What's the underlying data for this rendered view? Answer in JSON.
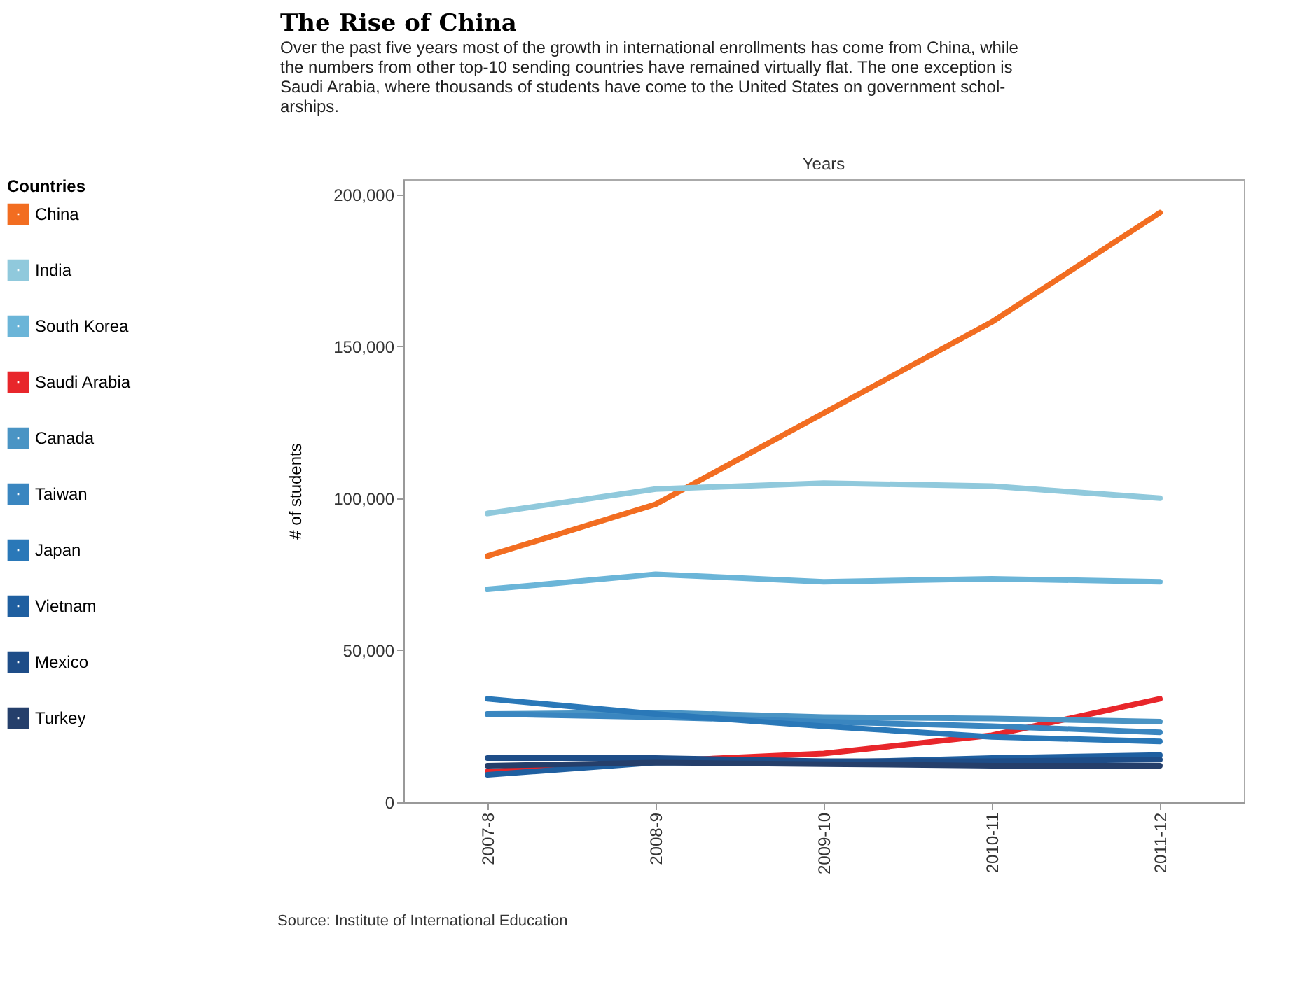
{
  "chart_data": {
    "type": "line",
    "title": "The Rise of China",
    "subtitle": "Over the past five years most of the growth in international enrollments has come from China, while the numbers from other top-10 sending countries have remained virtually flat. The one exception is Saudi Arabia, where thousands of students have come to the United States on government schol-arships.",
    "xlabel": "Years",
    "ylabel": "# of students",
    "legend_title": "Countries",
    "legend": "left",
    "grid": false,
    "marker": "none",
    "line_style": "solid",
    "categories": [
      "2007-8",
      "2008-9",
      "2009-10",
      "2010-11",
      "2011-12"
    ],
    "ylim": [
      0,
      205000
    ],
    "yticks": [
      0,
      {
        "value": 50000,
        "label": "50,000"
      },
      {
        "value": 100000,
        "label": "100,000"
      },
      {
        "value": 150000,
        "label": "150,000"
      },
      {
        "value": 200000,
        "label": "200,000"
      }
    ],
    "series": [
      {
        "name": "China",
        "color": "#f26d21",
        "values": [
          81000,
          98000,
          128000,
          158000,
          194000
        ]
      },
      {
        "name": "India",
        "color": "#90c9dc",
        "values": [
          95000,
          103000,
          105000,
          104000,
          100000
        ]
      },
      {
        "name": "South Korea",
        "color": "#6bb5d8",
        "values": [
          70000,
          75000,
          72500,
          73500,
          72500
        ]
      },
      {
        "name": "Saudi Arabia",
        "color": "#e8262b",
        "values": [
          10000,
          13500,
          16000,
          22000,
          34000
        ]
      },
      {
        "name": "Canada",
        "color": "#4a94c4",
        "values": [
          29000,
          29500,
          28000,
          27500,
          26500
        ]
      },
      {
        "name": "Taiwan",
        "color": "#3a86c0",
        "values": [
          29000,
          28000,
          26500,
          25000,
          23000
        ]
      },
      {
        "name": "Japan",
        "color": "#2a78b8",
        "values": [
          34000,
          29000,
          25000,
          21500,
          20000
        ]
      },
      {
        "name": "Vietnam",
        "color": "#1f5fa0",
        "values": [
          9000,
          13000,
          13000,
          14500,
          15500
        ]
      },
      {
        "name": "Mexico",
        "color": "#1e4d88",
        "values": [
          14500,
          14500,
          13500,
          13500,
          14000
        ]
      },
      {
        "name": "Turkey",
        "color": "#253f6b",
        "values": [
          12000,
          13000,
          12500,
          12000,
          12000
        ]
      }
    ],
    "annotations": [
      "Source: Institute of International Education"
    ]
  }
}
